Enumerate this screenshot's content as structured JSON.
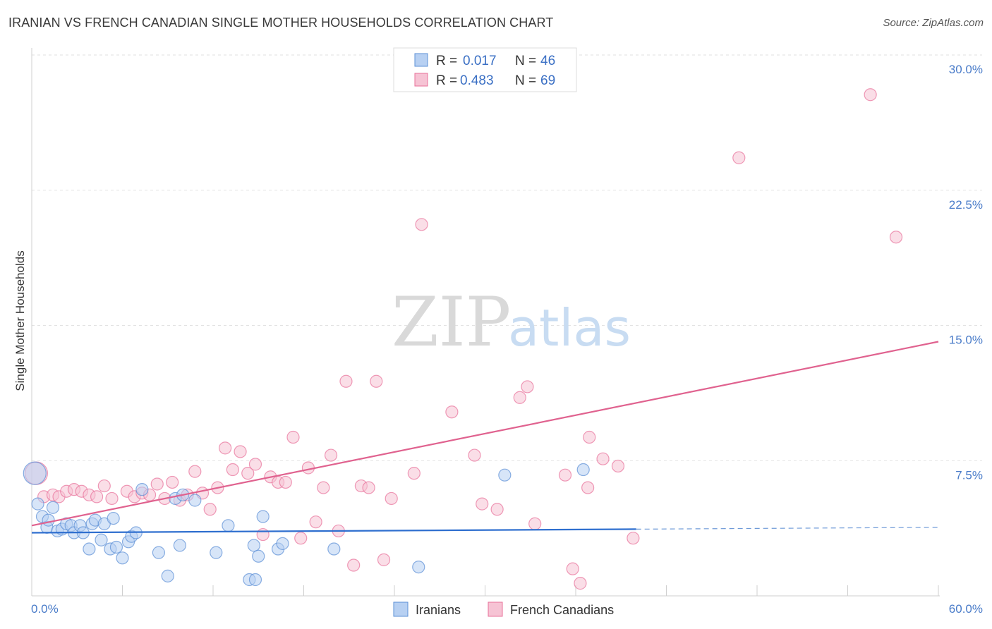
{
  "title": "IRANIAN VS FRENCH CANADIAN SINGLE MOTHER HOUSEHOLDS CORRELATION CHART",
  "source": "Source: ZipAtlas.com",
  "watermark": {
    "zip": "ZIP",
    "atlas": "atlas"
  },
  "colors": {
    "blue": "#5b8fd6",
    "blue_fill": "#b7d0f2",
    "pink": "#e8709a",
    "pink_fill": "#f6c3d4",
    "axis_text": "#4a7cc9"
  },
  "legend": {
    "rows": [
      {
        "r_label": "R = ",
        "r_value": "0.017",
        "n_label": "N = ",
        "n_value": "46"
      },
      {
        "r_label": "R = ",
        "r_value": "0.483",
        "n_label": "N = ",
        "n_value": "69"
      }
    ]
  },
  "bottom_legend": [
    "Iranians",
    "French Canadians"
  ],
  "chart_data": {
    "type": "scatter",
    "ylabel": "Single Mother Households",
    "xlabel": "",
    "xlim": [
      0,
      60
    ],
    "ylim": [
      0,
      30
    ],
    "x_tick_labels": [
      "0.0%",
      "60.0%"
    ],
    "y_ticks": [
      7.5,
      15.0,
      22.5,
      30.0
    ],
    "y_tick_labels": [
      "7.5%",
      "15.0%",
      "22.5%",
      "30.0%"
    ],
    "grid": true,
    "series": [
      {
        "name": "Iranians",
        "trend": {
          "x0": 0,
          "y0": 3.5,
          "x1": 40,
          "y1": 3.7,
          "dash_to": 60
        },
        "points": [
          [
            0.2,
            6.8
          ],
          [
            0.4,
            5.1
          ],
          [
            0.7,
            4.4
          ],
          [
            1.0,
            3.8
          ],
          [
            1.1,
            4.2
          ],
          [
            1.4,
            4.9
          ],
          [
            1.7,
            3.6
          ],
          [
            2.0,
            3.7
          ],
          [
            2.3,
            4.0
          ],
          [
            2.6,
            3.9
          ],
          [
            2.8,
            3.5
          ],
          [
            3.2,
            3.9
          ],
          [
            3.4,
            3.5
          ],
          [
            3.8,
            2.6
          ],
          [
            4.0,
            4.0
          ],
          [
            4.2,
            4.2
          ],
          [
            4.6,
            3.1
          ],
          [
            4.8,
            4.0
          ],
          [
            5.2,
            2.6
          ],
          [
            5.4,
            4.3
          ],
          [
            5.6,
            2.7
          ],
          [
            6.0,
            2.1
          ],
          [
            6.4,
            3.0
          ],
          [
            6.6,
            3.3
          ],
          [
            6.9,
            3.5
          ],
          [
            7.3,
            5.9
          ],
          [
            8.4,
            2.4
          ],
          [
            9.0,
            1.1
          ],
          [
            9.5,
            5.4
          ],
          [
            9.8,
            2.8
          ],
          [
            10.0,
            5.6
          ],
          [
            10.8,
            5.3
          ],
          [
            12.2,
            2.4
          ],
          [
            13.0,
            3.9
          ],
          [
            14.4,
            0.9
          ],
          [
            14.7,
            2.8
          ],
          [
            14.8,
            0.9
          ],
          [
            15.0,
            2.2
          ],
          [
            15.3,
            4.4
          ],
          [
            16.3,
            2.6
          ],
          [
            16.6,
            2.9
          ],
          [
            20.0,
            2.6
          ],
          [
            25.6,
            1.6
          ],
          [
            31.3,
            6.7
          ],
          [
            36.5,
            7.0
          ]
        ]
      },
      {
        "name": "French Canadians",
        "trend": {
          "x0": 0,
          "y0": 3.9,
          "x1": 60,
          "y1": 14.1
        },
        "points": [
          [
            0.3,
            6.8
          ],
          [
            0.8,
            5.5
          ],
          [
            1.4,
            5.6
          ],
          [
            1.8,
            5.5
          ],
          [
            2.3,
            5.8
          ],
          [
            2.8,
            5.9
          ],
          [
            3.3,
            5.8
          ],
          [
            3.8,
            5.6
          ],
          [
            4.3,
            5.5
          ],
          [
            4.8,
            6.1
          ],
          [
            5.3,
            5.4
          ],
          [
            6.3,
            5.8
          ],
          [
            6.8,
            5.5
          ],
          [
            7.3,
            5.7
          ],
          [
            7.8,
            5.6
          ],
          [
            8.3,
            6.2
          ],
          [
            8.8,
            5.4
          ],
          [
            9.3,
            6.3
          ],
          [
            9.8,
            5.3
          ],
          [
            10.3,
            5.6
          ],
          [
            10.8,
            6.9
          ],
          [
            11.3,
            5.7
          ],
          [
            11.8,
            4.8
          ],
          [
            12.3,
            6.0
          ],
          [
            12.8,
            8.2
          ],
          [
            13.3,
            7.0
          ],
          [
            13.8,
            8.0
          ],
          [
            14.3,
            6.8
          ],
          [
            14.8,
            7.3
          ],
          [
            15.3,
            3.4
          ],
          [
            15.8,
            6.6
          ],
          [
            16.3,
            6.3
          ],
          [
            16.8,
            6.3
          ],
          [
            17.3,
            8.8
          ],
          [
            17.8,
            3.2
          ],
          [
            18.3,
            7.1
          ],
          [
            18.8,
            4.1
          ],
          [
            19.3,
            6.0
          ],
          [
            19.8,
            7.8
          ],
          [
            20.3,
            3.6
          ],
          [
            20.8,
            11.9
          ],
          [
            21.3,
            1.7
          ],
          [
            21.8,
            6.1
          ],
          [
            22.3,
            6.0
          ],
          [
            22.8,
            11.9
          ],
          [
            23.3,
            2.0
          ],
          [
            23.8,
            5.4
          ],
          [
            25.3,
            6.8
          ],
          [
            25.8,
            20.6
          ],
          [
            27.8,
            10.2
          ],
          [
            29.3,
            7.8
          ],
          [
            29.8,
            5.1
          ],
          [
            30.8,
            4.8
          ],
          [
            32.3,
            11.0
          ],
          [
            32.8,
            11.6
          ],
          [
            33.3,
            4.0
          ],
          [
            35.3,
            6.7
          ],
          [
            35.8,
            1.5
          ],
          [
            36.3,
            0.7
          ],
          [
            36.8,
            6.0
          ],
          [
            36.9,
            8.8
          ],
          [
            37.8,
            7.6
          ],
          [
            38.8,
            7.2
          ],
          [
            39.8,
            3.2
          ],
          [
            46.8,
            24.3
          ],
          [
            55.5,
            27.8
          ],
          [
            57.2,
            19.9
          ]
        ]
      }
    ]
  }
}
